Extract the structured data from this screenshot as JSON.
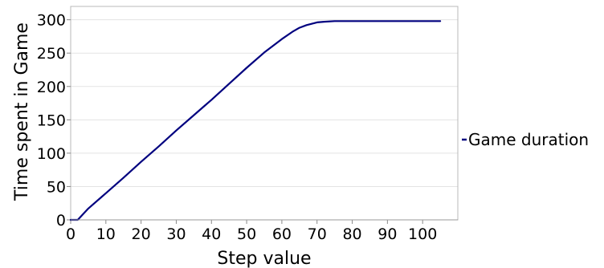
{
  "chart_data": {
    "type": "line",
    "title": "",
    "xlabel": "Step value",
    "ylabel": "Time spent in Game",
    "xlim": [
      0,
      110
    ],
    "ylim": [
      0,
      320
    ],
    "xticks": [
      0,
      10,
      20,
      30,
      40,
      50,
      60,
      70,
      80,
      90,
      100
    ],
    "yticks": [
      0,
      50,
      100,
      150,
      200,
      250,
      300
    ],
    "grid": true,
    "legend": "right",
    "series": [
      {
        "name": "Game duration",
        "color": "#00007f",
        "x": [
          0,
          2,
          5,
          10,
          15,
          20,
          25,
          30,
          35,
          40,
          45,
          50,
          55,
          60,
          63,
          65,
          67,
          70,
          72,
          75,
          80,
          85,
          90,
          95,
          100,
          105
        ],
        "y": [
          0,
          0,
          17,
          40,
          63,
          87,
          110,
          134,
          157,
          180,
          204,
          228,
          251,
          271,
          282,
          288,
          292,
          296,
          297,
          298,
          298,
          298,
          298,
          298,
          298,
          298
        ]
      }
    ]
  }
}
